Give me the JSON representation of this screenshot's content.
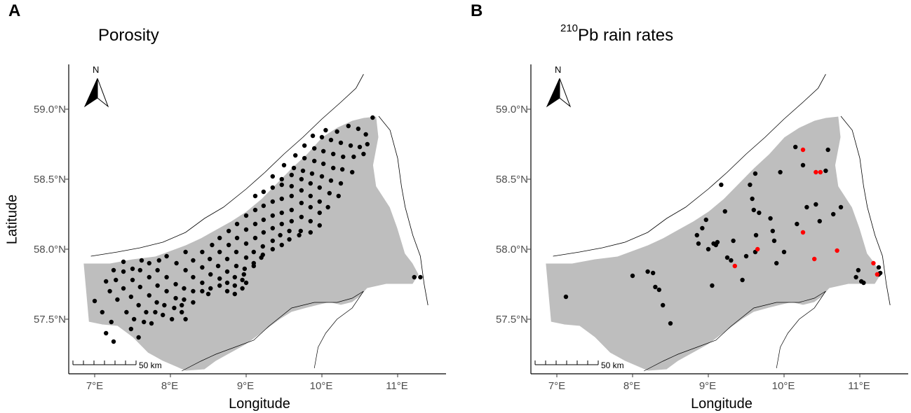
{
  "colors": {
    "water_polygon": "#bebebe",
    "coastline": "#000000",
    "station_black": "#000000",
    "station_red": "#ff0000",
    "axis_text": "#4d4d4d"
  },
  "axes": {
    "xlabel": "Longitude",
    "ylabel": "Latitude",
    "x_ticks": [
      "7°E",
      "8°E",
      "9°E",
      "10°E",
      "11°E"
    ],
    "y_ticks": [
      "57.5°N",
      "58.0°N",
      "58.5°N",
      "59.0°N"
    ],
    "xlim": [
      6.7,
      11.6
    ],
    "ylim": [
      57.1,
      59.3
    ]
  },
  "north_arrow_label": "N",
  "scale_bar_label": "50 km",
  "panels": [
    {
      "letter": "A",
      "title": "Porosity",
      "title_sup": "",
      "stations_black": [
        [
          7.0,
          57.63
        ],
        [
          7.1,
          57.55
        ],
        [
          7.22,
          57.48
        ],
        [
          7.48,
          57.43
        ],
        [
          7.15,
          57.4
        ],
        [
          7.25,
          57.34
        ],
        [
          7.58,
          57.37
        ],
        [
          7.15,
          57.77
        ],
        [
          7.25,
          57.85
        ],
        [
          7.38,
          57.91
        ],
        [
          7.5,
          57.86
        ],
        [
          7.62,
          57.92
        ],
        [
          7.2,
          57.7
        ],
        [
          7.3,
          57.64
        ],
        [
          7.42,
          57.55
        ],
        [
          7.52,
          57.5
        ],
        [
          7.65,
          57.48
        ],
        [
          7.75,
          57.47
        ],
        [
          7.28,
          57.78
        ],
        [
          7.38,
          57.72
        ],
        [
          7.48,
          57.66
        ],
        [
          7.58,
          57.6
        ],
        [
          7.68,
          57.55
        ],
        [
          7.8,
          57.55
        ],
        [
          7.9,
          57.53
        ],
        [
          8.02,
          57.5
        ],
        [
          8.15,
          57.55
        ],
        [
          8.2,
          57.5
        ],
        [
          7.38,
          57.84
        ],
        [
          7.5,
          57.78
        ],
        [
          7.6,
          57.73
        ],
        [
          7.72,
          57.67
        ],
        [
          7.82,
          57.62
        ],
        [
          7.92,
          57.6
        ],
        [
          8.05,
          57.58
        ],
        [
          8.15,
          57.6
        ],
        [
          7.6,
          57.85
        ],
        [
          7.72,
          57.8
        ],
        [
          7.83,
          57.74
        ],
        [
          7.95,
          57.7
        ],
        [
          8.07,
          57.65
        ],
        [
          8.18,
          57.64
        ],
        [
          8.3,
          57.62
        ],
        [
          7.72,
          57.9
        ],
        [
          7.83,
          57.85
        ],
        [
          7.95,
          57.8
        ],
        [
          8.07,
          57.75
        ],
        [
          8.18,
          57.72
        ],
        [
          8.3,
          57.7
        ],
        [
          8.42,
          57.7
        ],
        [
          8.5,
          57.68
        ],
        [
          7.85,
          57.92
        ],
        [
          7.95,
          57.95
        ],
        [
          8.08,
          57.9
        ],
        [
          8.2,
          57.85
        ],
        [
          8.3,
          57.8
        ],
        [
          8.42,
          57.76
        ],
        [
          8.53,
          57.72
        ],
        [
          8.65,
          57.74
        ],
        [
          8.75,
          57.7
        ],
        [
          8.85,
          57.68
        ],
        [
          8.95,
          57.72
        ],
        [
          9.0,
          57.76
        ],
        [
          8.2,
          57.98
        ],
        [
          8.3,
          57.92
        ],
        [
          8.42,
          57.87
        ],
        [
          8.53,
          57.82
        ],
        [
          8.65,
          57.79
        ],
        [
          8.75,
          57.76
        ],
        [
          8.85,
          57.74
        ],
        [
          8.95,
          57.78
        ],
        [
          8.42,
          57.98
        ],
        [
          8.52,
          57.93
        ],
        [
          8.63,
          57.88
        ],
        [
          8.75,
          57.84
        ],
        [
          8.85,
          57.8
        ],
        [
          8.97,
          57.82
        ],
        [
          9.1,
          57.88
        ],
        [
          9.2,
          57.94
        ],
        [
          8.55,
          58.03
        ],
        [
          8.65,
          57.98
        ],
        [
          8.75,
          57.93
        ],
        [
          8.87,
          57.88
        ],
        [
          8.98,
          57.86
        ],
        [
          9.1,
          57.9
        ],
        [
          9.22,
          57.96
        ],
        [
          9.35,
          58.0
        ],
        [
          9.47,
          58.03
        ],
        [
          9.57,
          58.07
        ],
        [
          8.65,
          58.08
        ],
        [
          8.77,
          58.03
        ],
        [
          8.87,
          57.98
        ],
        [
          9.0,
          57.94
        ],
        [
          9.1,
          57.98
        ],
        [
          9.22,
          58.02
        ],
        [
          9.35,
          58.06
        ],
        [
          9.45,
          58.1
        ],
        [
          9.57,
          58.13
        ],
        [
          9.7,
          58.1
        ],
        [
          8.77,
          58.13
        ],
        [
          8.88,
          58.08
        ],
        [
          9.0,
          58.04
        ],
        [
          9.12,
          58.08
        ],
        [
          9.23,
          58.12
        ],
        [
          9.35,
          58.15
        ],
        [
          9.47,
          58.18
        ],
        [
          9.6,
          58.2
        ],
        [
          9.72,
          58.13
        ],
        [
          9.85,
          58.12
        ],
        [
          8.88,
          58.18
        ],
        [
          9.0,
          58.14
        ],
        [
          9.12,
          58.18
        ],
        [
          9.23,
          58.21
        ],
        [
          9.35,
          58.24
        ],
        [
          9.47,
          58.26
        ],
        [
          9.6,
          58.28
        ],
        [
          9.73,
          58.23
        ],
        [
          9.85,
          58.2
        ],
        [
          9.97,
          58.17
        ],
        [
          9.0,
          58.24
        ],
        [
          9.12,
          58.28
        ],
        [
          9.23,
          58.31
        ],
        [
          9.35,
          58.34
        ],
        [
          9.47,
          58.36
        ],
        [
          9.6,
          58.38
        ],
        [
          9.73,
          58.33
        ],
        [
          9.85,
          58.3
        ],
        [
          9.97,
          58.26
        ],
        [
          9.12,
          58.38
        ],
        [
          9.23,
          58.41
        ],
        [
          9.35,
          58.44
        ],
        [
          9.47,
          58.46
        ],
        [
          9.6,
          58.45
        ],
        [
          9.73,
          58.42
        ],
        [
          9.85,
          58.38
        ],
        [
          9.97,
          58.34
        ],
        [
          10.08,
          58.3
        ],
        [
          9.35,
          58.52
        ],
        [
          9.47,
          58.5
        ],
        [
          9.6,
          58.53
        ],
        [
          9.73,
          58.5
        ],
        [
          9.85,
          58.47
        ],
        [
          9.97,
          58.44
        ],
        [
          10.1,
          58.4
        ],
        [
          10.22,
          58.38
        ],
        [
          9.5,
          58.6
        ],
        [
          9.63,
          58.58
        ],
        [
          9.75,
          58.56
        ],
        [
          9.87,
          58.54
        ],
        [
          10.0,
          58.52
        ],
        [
          10.12,
          58.49
        ],
        [
          10.25,
          58.47
        ],
        [
          9.65,
          58.67
        ],
        [
          9.77,
          58.65
        ],
        [
          9.9,
          58.63
        ],
        [
          10.02,
          58.61
        ],
        [
          10.15,
          58.58
        ],
        [
          10.27,
          58.57
        ],
        [
          10.4,
          58.55
        ],
        [
          9.77,
          58.74
        ],
        [
          9.9,
          58.72
        ],
        [
          10.02,
          58.7
        ],
        [
          10.15,
          58.68
        ],
        [
          10.28,
          58.66
        ],
        [
          10.42,
          58.66
        ],
        [
          10.55,
          58.68
        ],
        [
          9.88,
          58.81
        ],
        [
          10.0,
          58.8
        ],
        [
          10.12,
          58.78
        ],
        [
          10.25,
          58.76
        ],
        [
          10.38,
          58.74
        ],
        [
          10.5,
          58.73
        ],
        [
          10.6,
          58.75
        ],
        [
          10.05,
          58.85
        ],
        [
          10.2,
          58.84
        ],
        [
          10.35,
          58.88
        ],
        [
          10.48,
          58.86
        ],
        [
          10.58,
          58.82
        ],
        [
          10.67,
          58.94
        ],
        [
          11.22,
          57.8
        ],
        [
          11.3,
          57.8
        ]
      ],
      "stations_red": []
    },
    {
      "letter": "B",
      "title": "Pb rain rates",
      "title_sup": "210",
      "stations_black": [
        [
          7.12,
          57.66
        ],
        [
          8.0,
          57.81
        ],
        [
          8.2,
          57.84
        ],
        [
          8.27,
          57.83
        ],
        [
          8.3,
          57.73
        ],
        [
          8.35,
          57.71
        ],
        [
          8.4,
          57.6
        ],
        [
          8.5,
          57.47
        ],
        [
          8.85,
          58.1
        ],
        [
          8.87,
          58.04
        ],
        [
          8.92,
          58.15
        ],
        [
          8.97,
          58.21
        ],
        [
          9.0,
          58.0
        ],
        [
          9.05,
          57.74
        ],
        [
          9.07,
          58.04
        ],
        [
          9.1,
          58.03
        ],
        [
          9.12,
          58.05
        ],
        [
          9.17,
          58.46
        ],
        [
          9.22,
          58.27
        ],
        [
          9.25,
          57.94
        ],
        [
          9.3,
          57.92
        ],
        [
          9.33,
          58.06
        ],
        [
          9.45,
          57.78
        ],
        [
          9.5,
          57.95
        ],
        [
          9.55,
          58.46
        ],
        [
          9.58,
          58.36
        ],
        [
          9.6,
          58.28
        ],
        [
          9.62,
          58.54
        ],
        [
          9.62,
          57.98
        ],
        [
          9.63,
          58.1
        ],
        [
          9.67,
          58.26
        ],
        [
          9.82,
          58.22
        ],
        [
          9.85,
          58.13
        ],
        [
          9.87,
          58.06
        ],
        [
          9.9,
          57.9
        ],
        [
          9.95,
          58.55
        ],
        [
          10.0,
          57.98
        ],
        [
          10.15,
          58.73
        ],
        [
          10.17,
          58.18
        ],
        [
          10.25,
          58.6
        ],
        [
          10.3,
          58.3
        ],
        [
          10.42,
          58.32
        ],
        [
          10.47,
          58.2
        ],
        [
          10.55,
          58.56
        ],
        [
          10.58,
          58.71
        ],
        [
          10.65,
          58.25
        ],
        [
          10.75,
          58.3
        ],
        [
          10.95,
          57.8
        ],
        [
          10.98,
          57.85
        ],
        [
          11.02,
          57.77
        ],
        [
          11.05,
          57.76
        ],
        [
          11.25,
          57.87
        ],
        [
          11.25,
          57.82
        ],
        [
          11.27,
          57.83
        ]
      ],
      "stations_red": [
        [
          10.25,
          58.71
        ],
        [
          10.42,
          58.55
        ],
        [
          10.48,
          58.55
        ],
        [
          10.25,
          58.12
        ],
        [
          9.65,
          58.0
        ],
        [
          9.35,
          57.88
        ],
        [
          10.4,
          57.93
        ],
        [
          10.7,
          57.99
        ],
        [
          11.18,
          57.9
        ],
        [
          11.23,
          57.82
        ]
      ]
    }
  ]
}
